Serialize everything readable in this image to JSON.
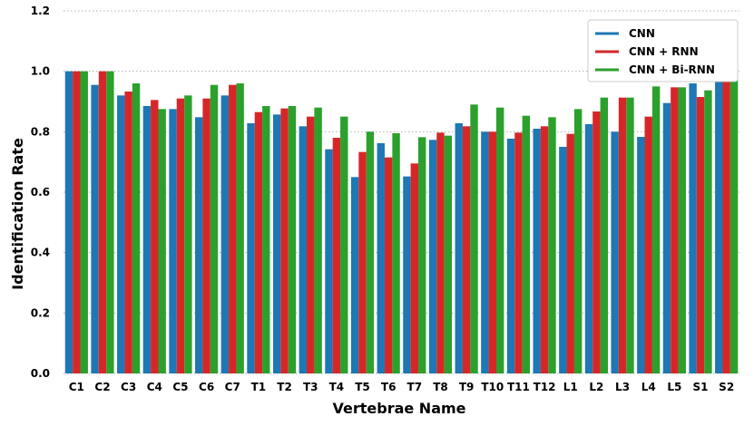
{
  "chart_data": {
    "type": "bar",
    "title": "",
    "xlabel": "Vertebrae Name",
    "ylabel": "Identification Rate",
    "ylim": [
      0,
      1.2
    ],
    "yticks": [
      "0.0",
      "0.2",
      "0.4",
      "0.6",
      "0.8",
      "1.0",
      "1.2"
    ],
    "grid": true,
    "legend_position": "top-right",
    "categories": [
      "C1",
      "C2",
      "C3",
      "C4",
      "C5",
      "C6",
      "C7",
      "T1",
      "T2",
      "T3",
      "T4",
      "T5",
      "T6",
      "T7",
      "T8",
      "T9",
      "T10",
      "T11",
      "T12",
      "L1",
      "L2",
      "L3",
      "L4",
      "L5",
      "S1",
      "S2"
    ],
    "series": [
      {
        "name": "CNN",
        "color": "#1f77b4",
        "values": [
          1.0,
          0.955,
          0.92,
          0.885,
          0.875,
          0.848,
          0.92,
          0.828,
          0.857,
          0.818,
          0.742,
          0.65,
          0.762,
          0.652,
          0.773,
          0.828,
          0.8,
          0.777,
          0.81,
          0.75,
          0.825,
          0.8,
          0.783,
          0.895,
          0.96,
          1.0
        ]
      },
      {
        "name": "CNN + RNN",
        "color": "#d62728",
        "values": [
          1.0,
          1.0,
          0.933,
          0.905,
          0.91,
          0.91,
          0.955,
          0.865,
          0.877,
          0.85,
          0.78,
          0.733,
          0.715,
          0.695,
          0.797,
          0.818,
          0.8,
          0.797,
          0.818,
          0.793,
          0.867,
          0.913,
          0.85,
          0.947,
          0.915,
          1.0
        ]
      },
      {
        "name": "CNN + Bi-RNN",
        "color": "#2ca02c",
        "values": [
          1.0,
          1.0,
          0.96,
          0.875,
          0.92,
          0.955,
          0.96,
          0.885,
          0.885,
          0.88,
          0.85,
          0.8,
          0.795,
          0.782,
          0.787,
          0.89,
          0.88,
          0.853,
          0.848,
          0.875,
          0.913,
          0.913,
          0.95,
          0.947,
          0.937,
          1.0
        ]
      }
    ]
  }
}
